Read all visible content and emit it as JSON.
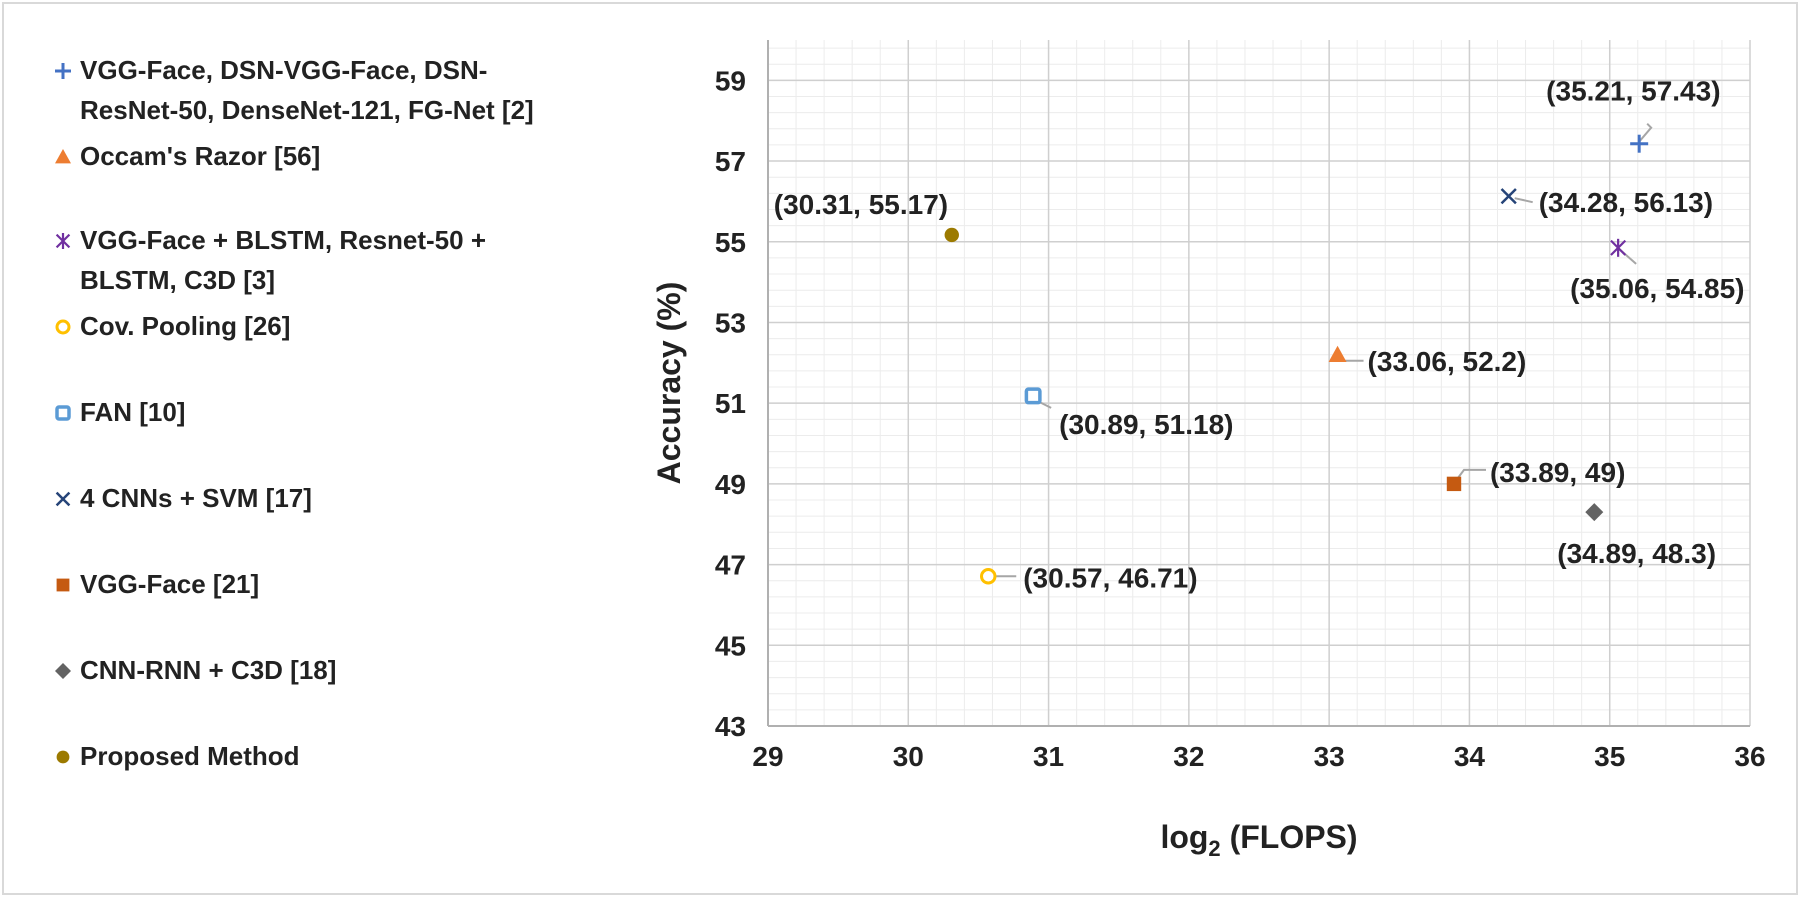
{
  "chart_data": {
    "type": "scatter",
    "xlabel_main": "log",
    "xlabel_sub": "2",
    "xlabel_rest": " (FLOPS)",
    "ylabel": "Accuracy (%)",
    "xlim": [
      29,
      36
    ],
    "ylim": [
      43,
      60
    ],
    "xticks": [
      "29",
      "30",
      "31",
      "32",
      "33",
      "34",
      "35",
      "36"
    ],
    "yticks": [
      "43",
      "45",
      "47",
      "49",
      "51",
      "53",
      "55",
      "57",
      "59"
    ],
    "grid": true,
    "legend_position": "left",
    "series": [
      {
        "name": "VGG-Face, DSN-VGG-Face, DSN-\nResNet-50, DenseNet-121, FG-Net [2]",
        "marker": "plus",
        "color": "#4472c4",
        "x": 35.21,
        "y": 57.43,
        "label": "(35.21, 57.43)"
      },
      {
        "name": "Occam's Razor [56]",
        "marker": "triangle",
        "color": "#ed7d31",
        "x": 33.06,
        "y": 52.2,
        "label": "(33.06, 52.2)"
      },
      {
        "name": "VGG-Face + BLSTM, Resnet-50 +\nBLSTM, C3D [3]",
        "marker": "asterisk",
        "color": "#7030a0",
        "x": 35.06,
        "y": 54.85,
        "label": "(35.06, 54.85)"
      },
      {
        "name": "Cov. Pooling [26]",
        "marker": "circle-open",
        "color": "#ffc000",
        "x": 30.57,
        "y": 46.71,
        "label": "(30.57, 46.71)"
      },
      {
        "name": "FAN [10]",
        "marker": "square-open",
        "color": "#5b9bd5",
        "x": 30.89,
        "y": 51.18,
        "label": "(30.89, 51.18)"
      },
      {
        "name": "4 CNNs + SVM [17]",
        "marker": "x",
        "color": "#264478",
        "x": 34.28,
        "y": 56.13,
        "label": "(34.28, 56.13)"
      },
      {
        "name": "VGG-Face [21]",
        "marker": "square",
        "color": "#c55a11",
        "x": 33.89,
        "y": 49,
        "label": "(33.89, 49)"
      },
      {
        "name": "CNN-RNN + C3D [18]",
        "marker": "diamond",
        "color": "#636363",
        "x": 34.89,
        "y": 48.3,
        "label": "(34.89, 48.3)"
      },
      {
        "name": "Proposed Method",
        "marker": "circle",
        "color": "#9c7a00",
        "x": 30.31,
        "y": 55.17,
        "label": "(30.31, 55.17)"
      }
    ]
  }
}
